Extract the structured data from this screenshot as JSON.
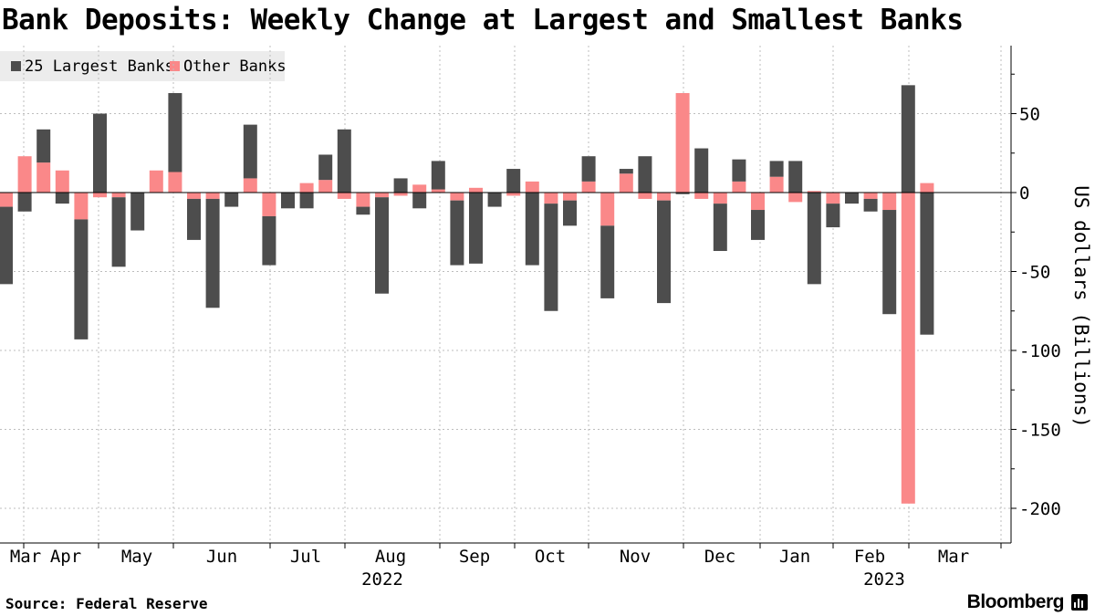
{
  "header": {
    "title": "Bank Deposits: Weekly Change at Largest and Smallest Banks"
  },
  "footer": {
    "source": "Source: Federal Reserve",
    "brand": "Bloomberg"
  },
  "colors": {
    "large": "#4d4d4d",
    "other": "#fa8889"
  },
  "chart_data": {
    "type": "bar",
    "stacked": true,
    "title": "Bank Deposits: Weekly Change at Largest and Smallest Banks",
    "ylabel": "US dollars (Billions)",
    "ylim": [
      -220,
      92
    ],
    "yticks": [
      50,
      0,
      -50,
      -100,
      -150,
      -200
    ],
    "legend_position": "top-left",
    "grid": true,
    "month_labels": [
      "Mar",
      "Apr",
      "May",
      "Jun",
      "Jul",
      "Aug",
      "Sep",
      "Oct",
      "Nov",
      "Dec",
      "Jan",
      "Feb",
      "Mar"
    ],
    "year_labels": [
      "2022",
      "2023"
    ],
    "series": [
      {
        "name": "25 Largest Banks",
        "color": "#4d4d4d",
        "values": [
          -49,
          -12,
          21,
          -7,
          -76,
          50,
          -44,
          -24,
          0,
          50,
          -26,
          -69,
          -9,
          34,
          -31,
          -10,
          -10,
          16,
          40,
          -5,
          -61,
          9,
          -10,
          18,
          -41,
          -45,
          -9,
          15,
          -46,
          -68,
          -16,
          16,
          -46,
          3,
          23,
          -65,
          -1,
          28,
          -30,
          14,
          -19,
          10,
          20,
          -58,
          -15,
          -7,
          -8,
          -66,
          68,
          -90
        ]
      },
      {
        "name": "Other Banks",
        "color": "#fa8889",
        "values": [
          -9,
          23,
          19,
          14,
          -17,
          -3,
          -3,
          0,
          14,
          13,
          -4,
          -4,
          0,
          9,
          -15,
          0,
          6,
          8,
          -4,
          -9,
          -3,
          -2,
          5,
          2,
          -5,
          3,
          0,
          -2,
          7,
          -7,
          -5,
          7,
          -21,
          12,
          -4,
          -5,
          63,
          -4,
          -7,
          7,
          -11,
          10,
          -6,
          1,
          -7,
          0,
          -4,
          -11,
          -197,
          6
        ]
      }
    ]
  }
}
